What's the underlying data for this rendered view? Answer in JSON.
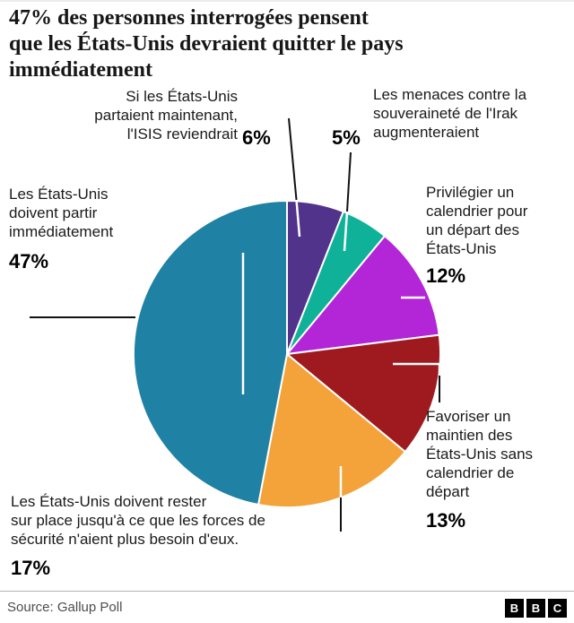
{
  "title_lines": [
    "47% des personnes interrogées pensent",
    "que les États-Unis devraient quitter le pays",
    "immédiatement"
  ],
  "chart_data": {
    "type": "pie",
    "unit": "%",
    "start_angle_deg": -90,
    "direction": "clockwise",
    "segments": [
      {
        "label": "Si les États-Unis partaient maintenant, l'ISIS reviendrait",
        "lines": [
          "Si les États-Unis",
          "partaient maintenant,",
          "l'ISIS reviendrait"
        ],
        "value": 6,
        "pct": "6%",
        "color": "#52338b"
      },
      {
        "label": "Les menaces contre la souveraineté de l'Irak augmenteraient",
        "lines": [
          "Les menaces contre la",
          "souveraineté de l'Irak",
          "augmenteraient"
        ],
        "value": 5,
        "pct": "5%",
        "color": "#0fb298"
      },
      {
        "label": "Privilégier un calendrier pour un départ des États-Unis",
        "lines": [
          "Privilégier un",
          "calendrier pour",
          "un départ des",
          "États-Unis"
        ],
        "value": 12,
        "pct": "12%",
        "color": "#b226d8"
      },
      {
        "label": "Favoriser un maintien des États-Unis sans calendrier de départ",
        "lines": [
          "Favoriser un",
          "maintien des",
          "États-Unis sans",
          "calendrier de",
          "départ"
        ],
        "value": 13,
        "pct": "13%",
        "color": "#9e1a1f"
      },
      {
        "label": "Les États-Unis doivent rester sur place jusqu'à ce que les forces de sécurité n'aient plus besoin d'eux.",
        "lines": [
          "Les États-Unis doivent rester",
          "sur place jusqu'à ce que les forces de",
          "sécurité n'aient plus besoin d'eux."
        ],
        "value": 17,
        "pct": "17%",
        "color": "#f3a33a"
      },
      {
        "label": "Les États-Unis doivent partir immédiatement",
        "lines": [
          "Les États-Unis",
          "doivent partir",
          "immédiatement"
        ],
        "value": 47,
        "pct": "47%",
        "color": "#1f81a4"
      }
    ]
  },
  "footer": {
    "source": "Source: Gallup Poll",
    "logo_letters": [
      "B",
      "B",
      "C"
    ]
  }
}
